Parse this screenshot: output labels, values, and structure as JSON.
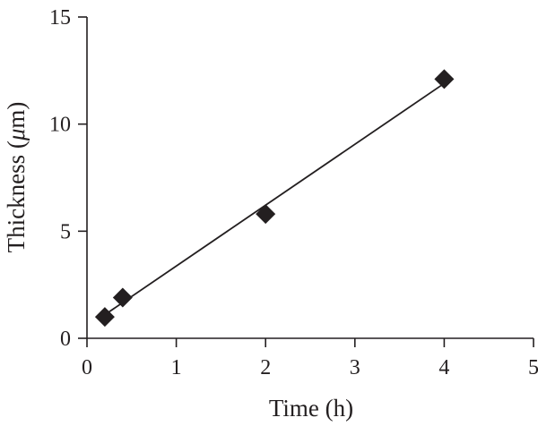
{
  "chart_data": {
    "type": "scatter",
    "xlabel": "Time (h)",
    "ylabel_prefix": "Thickness (",
    "ylabel_mu": "μ",
    "ylabel_suffix": "m)",
    "xlim": [
      0,
      5
    ],
    "ylim": [
      0,
      15
    ],
    "x_ticks": [
      0,
      1,
      2,
      3,
      4,
      5
    ],
    "y_ticks": [
      0,
      5,
      10,
      15
    ],
    "grid": false,
    "series": [
      {
        "marker": "diamond",
        "color": "#231f20",
        "points": [
          {
            "x": 0.2,
            "y": 1.0
          },
          {
            "x": 0.4,
            "y": 1.9
          },
          {
            "x": 2.0,
            "y": 5.8
          },
          {
            "x": 4.0,
            "y": 12.1
          }
        ]
      }
    ],
    "fit_line": {
      "x": [
        0.2,
        4.0
      ],
      "y": [
        1.1,
        11.9
      ],
      "color": "#231f20"
    }
  }
}
